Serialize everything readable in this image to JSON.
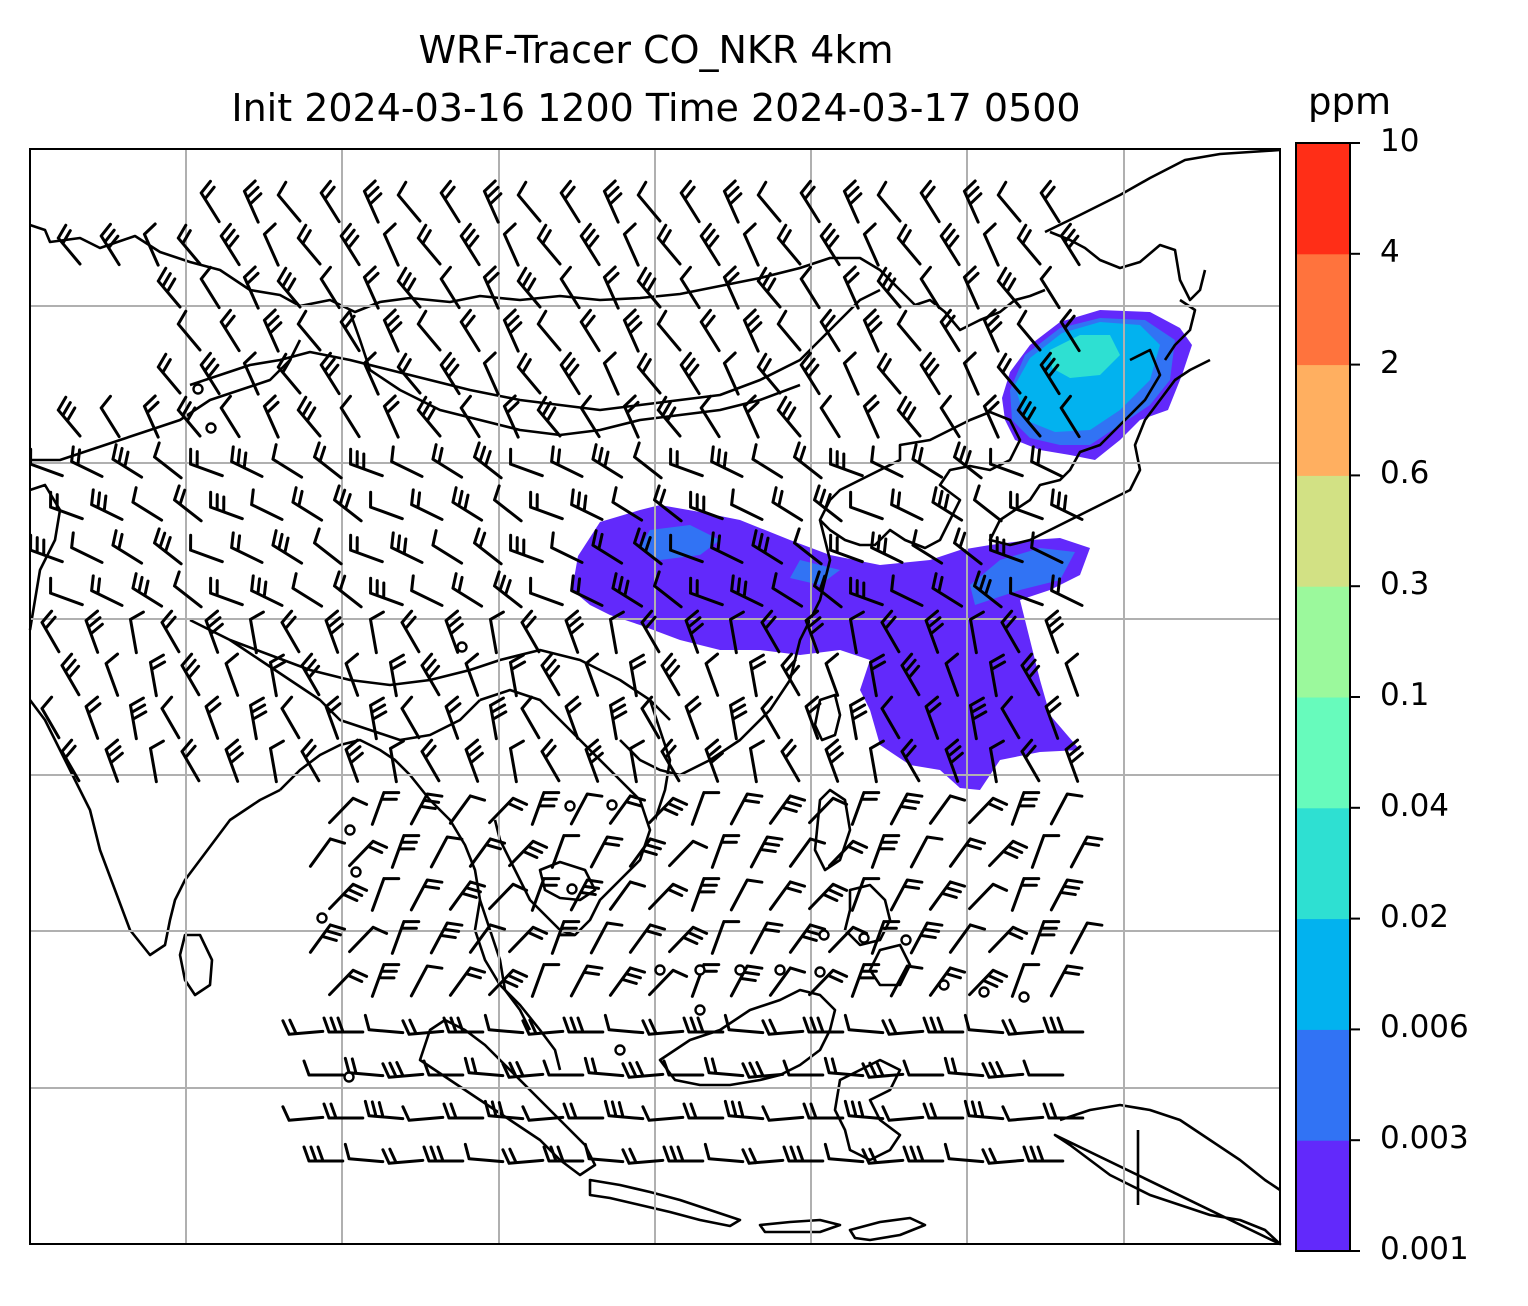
{
  "title": {
    "line1": "WRF-Tracer CO_NKR 4km",
    "line2": "Init 2024-03-16 1200 Time 2024-03-17 0500"
  },
  "colorbar": {
    "unit": "ppm",
    "ticks": [
      "0.001",
      "0.003",
      "0.006",
      "0.02",
      "0.04",
      "0.1",
      "0.3",
      "0.6",
      "2",
      "4",
      "10"
    ],
    "colors": [
      "#6229fb",
      "#3173f4",
      "#02b2ef",
      "#2ee0d2",
      "#67fbbc",
      "#9bf99c",
      "#d2e184",
      "#ffaf60",
      "#ff733d",
      "#ff2e17"
    ]
  },
  "map": {
    "gridlines": true,
    "coastlines": true,
    "wind_barbs": true,
    "plume_colors": {
      "low": "#6229fb",
      "mid": "#3173f4",
      "high": "#02b2ef",
      "core": "#2ee0d2"
    }
  }
}
